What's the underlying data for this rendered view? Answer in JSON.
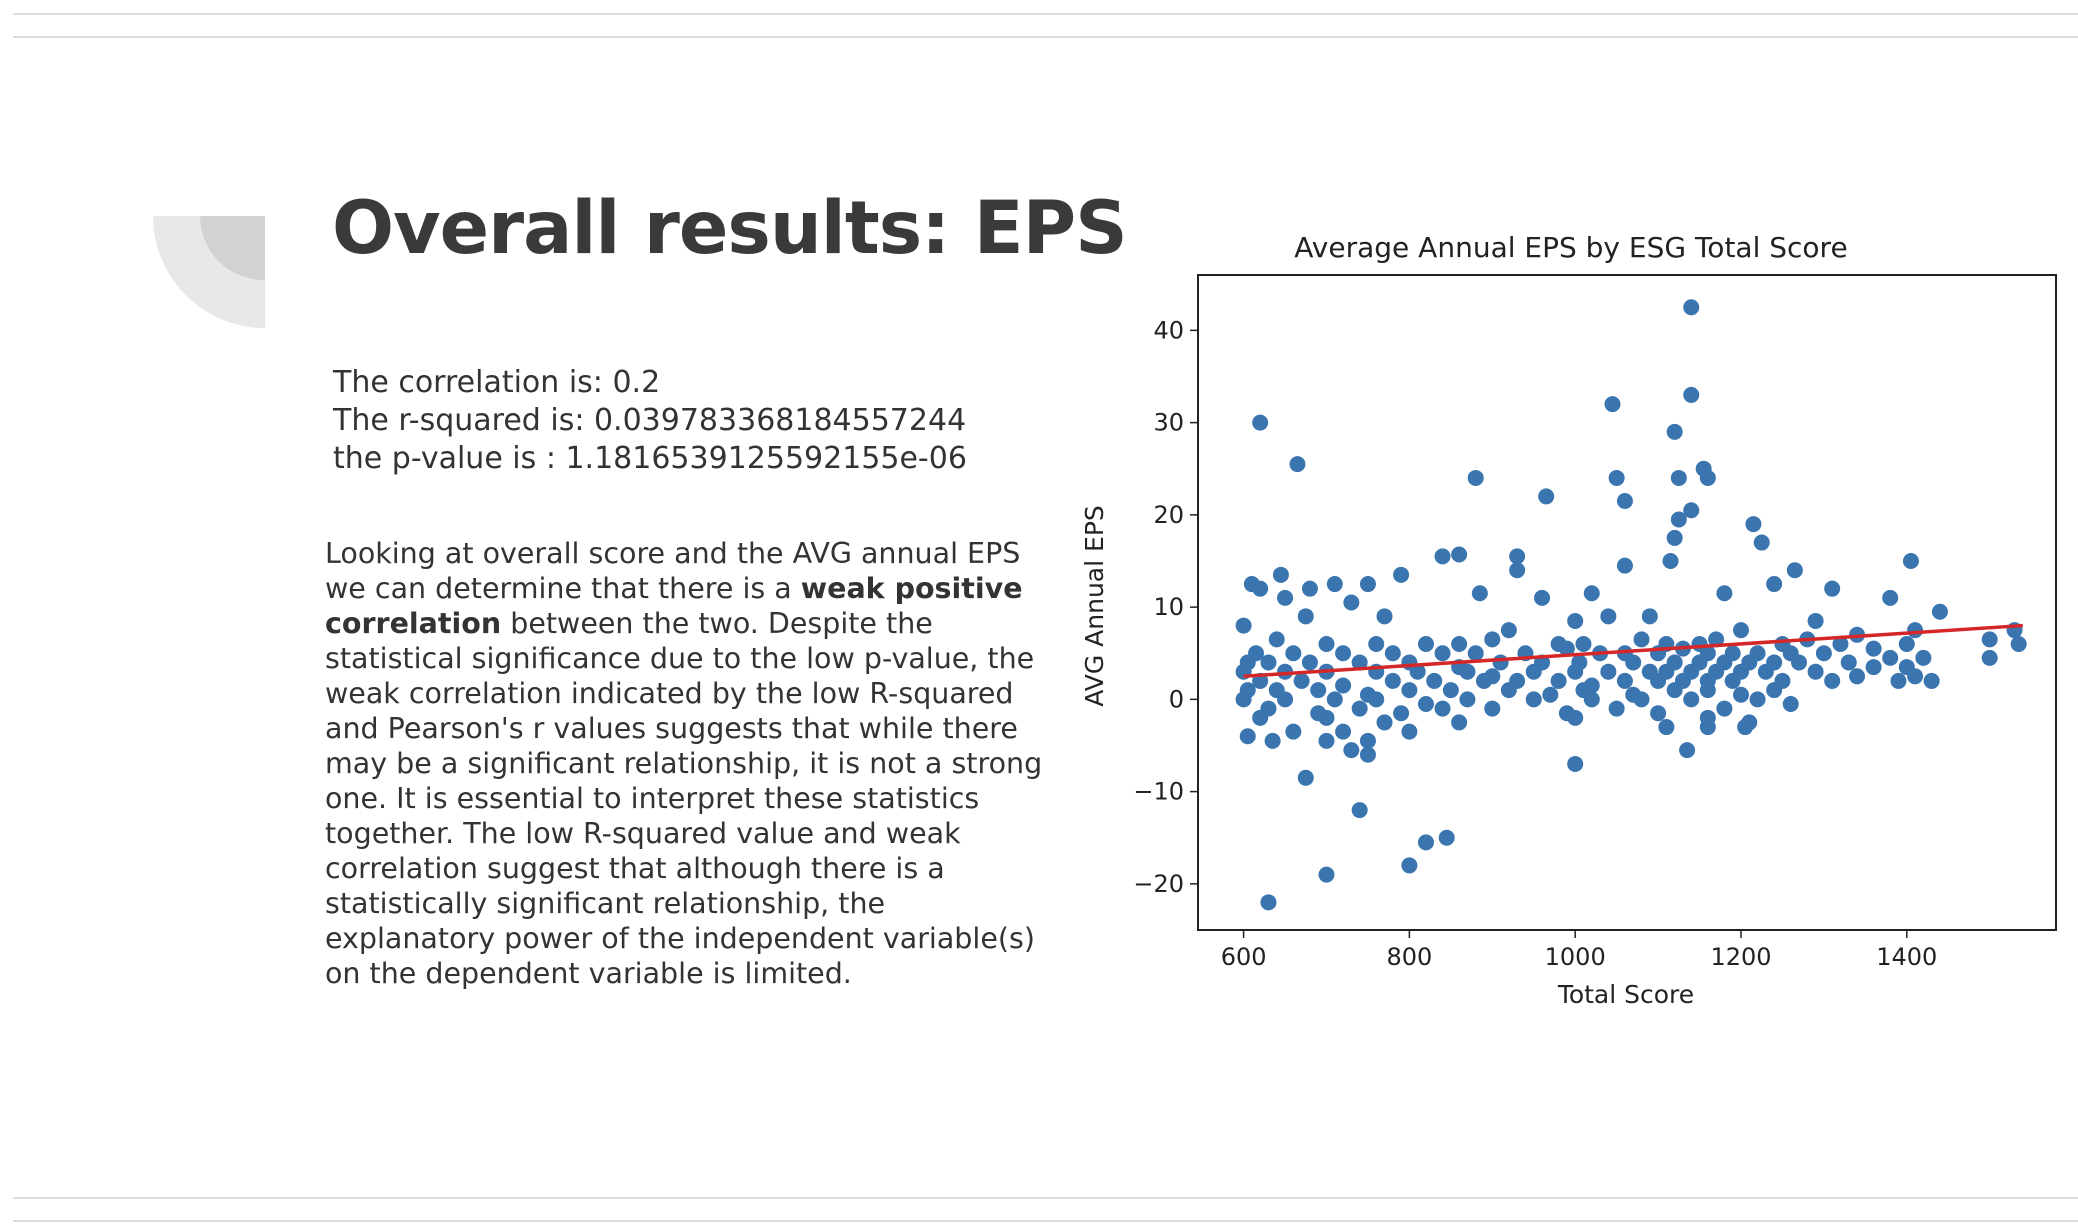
{
  "slide": {
    "title": "Overall results: EPS",
    "stats": {
      "correlation": "The correlation is: 0.2",
      "r_squared": "The r-squared is: 0.039783368184557244",
      "p_value": "the p-value is : 1.1816539125592155e-06"
    },
    "paragraph": {
      "intro": "Looking at overall score and the AVG annual EPS we can determine that there is a ",
      "bold": "weak positive correlation",
      "rest": " between the two. Despite the statistical significance due to the low p-value, the weak correlation indicated by the low R-squared and Pearson's r values suggests that while there may be a significant relationship, it is not a strong one. It is essential to interpret these statistics together. The low R-squared value and weak correlation suggest that although there is a statistically significant relationship, the explanatory power of the independent variable(s) on the dependent variable is limited."
    }
  },
  "chart_data": {
    "type": "scatter",
    "title": "Average Annual EPS by ESG Total Score",
    "xlabel": "Total Score",
    "ylabel": "AVG Annual EPS",
    "xlim": [
      545,
      1580
    ],
    "ylim": [
      -25,
      46
    ],
    "xticks": [
      600,
      800,
      1000,
      1200,
      1400
    ],
    "yticks": [
      -20,
      -10,
      0,
      10,
      20,
      30,
      40
    ],
    "grid": false,
    "point_color": "#3a75b0",
    "line_color": "#d62728",
    "trendline": {
      "x": [
        600,
        1540
      ],
      "y": [
        2.5,
        8.0
      ]
    },
    "points": [
      [
        1140,
        42.5
      ],
      [
        1140,
        33
      ],
      [
        1045,
        32
      ],
      [
        620,
        30
      ],
      [
        1120,
        29
      ],
      [
        665,
        25.5
      ],
      [
        1155,
        25
      ],
      [
        880,
        24
      ],
      [
        1050,
        24
      ],
      [
        1125,
        24
      ],
      [
        1160,
        24
      ],
      [
        965,
        22
      ],
      [
        1060,
        21.5
      ],
      [
        1140,
        20.5
      ],
      [
        1125,
        19.5
      ],
      [
        1215,
        19
      ],
      [
        1120,
        17.5
      ],
      [
        1225,
        17
      ],
      [
        840,
        15.5
      ],
      [
        860,
        15.7
      ],
      [
        930,
        15.5
      ],
      [
        1115,
        15
      ],
      [
        1405,
        15
      ],
      [
        1060,
        14.5
      ],
      [
        930,
        14
      ],
      [
        1265,
        14
      ],
      [
        645,
        13.5
      ],
      [
        790,
        13.5
      ],
      [
        610,
        12.5
      ],
      [
        710,
        12.5
      ],
      [
        750,
        12.5
      ],
      [
        1310,
        12
      ],
      [
        620,
        12
      ],
      [
        680,
        12
      ],
      [
        885,
        11.5
      ],
      [
        1020,
        11.5
      ],
      [
        1180,
        11.5
      ],
      [
        1240,
        12.5
      ],
      [
        960,
        11
      ],
      [
        730,
        10.5
      ],
      [
        650,
        11
      ],
      [
        1380,
        11
      ],
      [
        1440,
        9.5
      ],
      [
        675,
        9
      ],
      [
        770,
        9
      ],
      [
        1000,
        8.5
      ],
      [
        1040,
        9
      ],
      [
        1090,
        9
      ],
      [
        1290,
        8.5
      ],
      [
        600,
        8
      ],
      [
        920,
        7.5
      ],
      [
        1200,
        7.5
      ],
      [
        1340,
        7
      ],
      [
        1410,
        7.5
      ],
      [
        1530,
        7.5
      ],
      [
        640,
        6.5
      ],
      [
        700,
        6
      ],
      [
        760,
        6
      ],
      [
        820,
        6
      ],
      [
        860,
        6
      ],
      [
        900,
        6.5
      ],
      [
        980,
        6
      ],
      [
        1010,
        6
      ],
      [
        1080,
        6.5
      ],
      [
        1110,
        6
      ],
      [
        1150,
        6
      ],
      [
        1170,
        6.5
      ],
      [
        1250,
        6
      ],
      [
        1280,
        6.5
      ],
      [
        1320,
        6
      ],
      [
        1360,
        5.5
      ],
      [
        1400,
        6
      ],
      [
        1500,
        6.5
      ],
      [
        1535,
        6
      ],
      [
        615,
        5
      ],
      [
        660,
        5
      ],
      [
        720,
        5
      ],
      [
        780,
        5
      ],
      [
        840,
        5
      ],
      [
        880,
        5
      ],
      [
        940,
        5
      ],
      [
        990,
        5.5
      ],
      [
        1030,
        5
      ],
      [
        1060,
        5
      ],
      [
        1100,
        5
      ],
      [
        1130,
        5.5
      ],
      [
        1160,
        5
      ],
      [
        1190,
        5
      ],
      [
        1220,
        5
      ],
      [
        1260,
        5
      ],
      [
        1300,
        5
      ],
      [
        1380,
        4.5
      ],
      [
        1420,
        4.5
      ],
      [
        605,
        4
      ],
      [
        630,
        4
      ],
      [
        680,
        4
      ],
      [
        740,
        4
      ],
      [
        800,
        4
      ],
      [
        860,
        3.5
      ],
      [
        910,
        4
      ],
      [
        960,
        4
      ],
      [
        1005,
        4
      ],
      [
        1070,
        4
      ],
      [
        1120,
        4
      ],
      [
        1150,
        4
      ],
      [
        1180,
        4
      ],
      [
        1210,
        4
      ],
      [
        1240,
        4
      ],
      [
        1270,
        4
      ],
      [
        1330,
        4
      ],
      [
        1360,
        3.5
      ],
      [
        1400,
        3.5
      ],
      [
        1500,
        4.5
      ],
      [
        600,
        3
      ],
      [
        650,
        3
      ],
      [
        700,
        3
      ],
      [
        760,
        3
      ],
      [
        810,
        3
      ],
      [
        870,
        3
      ],
      [
        900,
        2.5
      ],
      [
        950,
        3
      ],
      [
        1000,
        3
      ],
      [
        1040,
        3
      ],
      [
        1090,
        3
      ],
      [
        1110,
        3
      ],
      [
        1140,
        3
      ],
      [
        1170,
        3
      ],
      [
        1200,
        3
      ],
      [
        1230,
        3
      ],
      [
        1290,
        3
      ],
      [
        1340,
        2.5
      ],
      [
        1410,
        2.5
      ],
      [
        620,
        2
      ],
      [
        670,
        2
      ],
      [
        720,
        1.5
      ],
      [
        780,
        2
      ],
      [
        830,
        2
      ],
      [
        890,
        2
      ],
      [
        930,
        2
      ],
      [
        980,
        2
      ],
      [
        1020,
        1.5
      ],
      [
        1060,
        2
      ],
      [
        1100,
        2
      ],
      [
        1130,
        2
      ],
      [
        1160,
        2
      ],
      [
        1190,
        2
      ],
      [
        1250,
        2
      ],
      [
        1310,
        2
      ],
      [
        1390,
        2
      ],
      [
        1430,
        2
      ],
      [
        605,
        1
      ],
      [
        640,
        1
      ],
      [
        690,
        1
      ],
      [
        750,
        0.5
      ],
      [
        800,
        1
      ],
      [
        850,
        1
      ],
      [
        920,
        1
      ],
      [
        970,
        0.5
      ],
      [
        1010,
        1
      ],
      [
        1070,
        0.5
      ],
      [
        1120,
        1
      ],
      [
        1160,
        1
      ],
      [
        1200,
        0.5
      ],
      [
        1240,
        1
      ],
      [
        600,
        0
      ],
      [
        650,
        0
      ],
      [
        710,
        0
      ],
      [
        760,
        0
      ],
      [
        820,
        -0.5
      ],
      [
        870,
        0
      ],
      [
        950,
        0
      ],
      [
        1020,
        0
      ],
      [
        1080,
        0
      ],
      [
        1140,
        0
      ],
      [
        1220,
        0
      ],
      [
        630,
        -1
      ],
      [
        690,
        -1.5
      ],
      [
        740,
        -1
      ],
      [
        790,
        -1.5
      ],
      [
        840,
        -1
      ],
      [
        900,
        -1
      ],
      [
        990,
        -1.5
      ],
      [
        1050,
        -1
      ],
      [
        1100,
        -1.5
      ],
      [
        1180,
        -1
      ],
      [
        1260,
        -0.5
      ],
      [
        620,
        -2
      ],
      [
        700,
        -2
      ],
      [
        770,
        -2.5
      ],
      [
        860,
        -2.5
      ],
      [
        1000,
        -2
      ],
      [
        1160,
        -2
      ],
      [
        1210,
        -2.5
      ],
      [
        1110,
        -3
      ],
      [
        1160,
        -3
      ],
      [
        1205,
        -3
      ],
      [
        660,
        -3.5
      ],
      [
        720,
        -3.5
      ],
      [
        800,
        -3.5
      ],
      [
        605,
        -4
      ],
      [
        635,
        -4.5
      ],
      [
        700,
        -4.5
      ],
      [
        750,
        -4.5
      ],
      [
        730,
        -5.5
      ],
      [
        750,
        -6
      ],
      [
        1135,
        -5.5
      ],
      [
        1000,
        -7
      ],
      [
        675,
        -8.5
      ],
      [
        740,
        -12
      ],
      [
        820,
        -15.5
      ],
      [
        845,
        -15
      ],
      [
        700,
        -19
      ],
      [
        800,
        -18
      ],
      [
        630,
        -22
      ]
    ]
  }
}
